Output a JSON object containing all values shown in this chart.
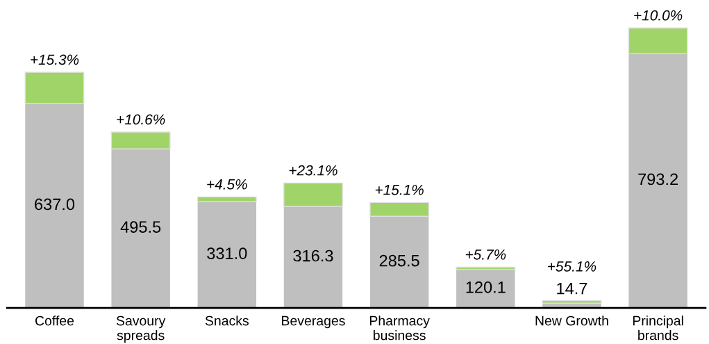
{
  "chart_data": {
    "type": "bar",
    "stacked": true,
    "categories": [
      "Coffee",
      "Savoury\nspreads",
      "Snacks",
      "Beverages",
      "Pharmacy\nbusiness",
      null,
      "New Growth",
      "Principal\nbrands"
    ],
    "series": [
      {
        "color": "#bfbfbf",
        "values": [
          637.0,
          495.5,
          331.0,
          316.3,
          285.5,
          120.1,
          14.7,
          793.2
        ],
        "value_labels": [
          "637.0",
          "495.5",
          "331.0",
          "316.3",
          "285.5",
          "120.1",
          "14.7",
          "793.2"
        ]
      },
      {
        "color": "#a0d468",
        "values": [
          97.5,
          52.5,
          14.9,
          73.0,
          43.1,
          6.8,
          8.1,
          79.3
        ]
      }
    ],
    "annotations": [
      "+15.3%",
      "+10.6%",
      "+4.5%",
      "+23.1%",
      "+15.1%",
      "+5.7%",
      "+55.1%",
      "+10.0%"
    ],
    "grid": false,
    "legend": false
  }
}
